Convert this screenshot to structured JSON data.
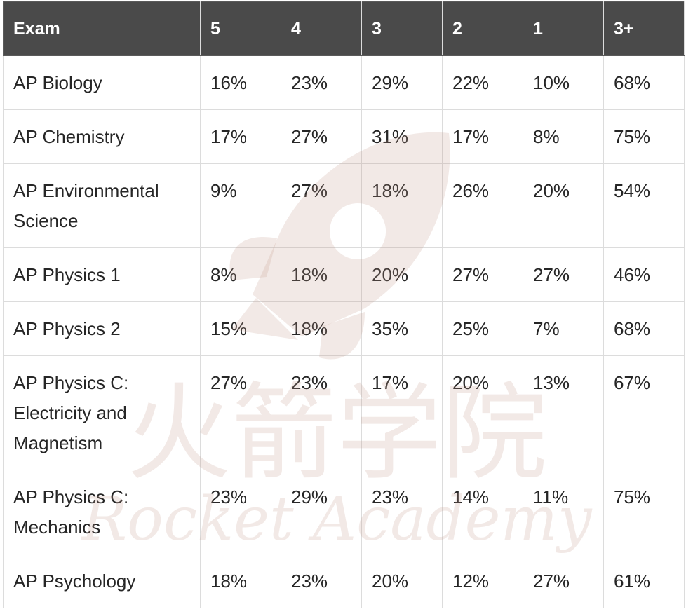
{
  "table": {
    "headers": [
      "Exam",
      "5",
      "4",
      "3",
      "2",
      "1",
      "3+"
    ],
    "rows": [
      {
        "exam": "AP Biology",
        "s5": "16%",
        "s4": "23%",
        "s3": "29%",
        "s2": "22%",
        "s1": "10%",
        "s3plus": "68%"
      },
      {
        "exam": "AP Chemistry",
        "s5": "17%",
        "s4": "27%",
        "s3": "31%",
        "s2": "17%",
        "s1": "8%",
        "s3plus": "75%"
      },
      {
        "exam": "AP Environmental Science",
        "s5": "9%",
        "s4": "27%",
        "s3": "18%",
        "s2": "26%",
        "s1": "20%",
        "s3plus": "54%"
      },
      {
        "exam": "AP Physics 1",
        "s5": "8%",
        "s4": "18%",
        "s3": "20%",
        "s2": "27%",
        "s1": "27%",
        "s3plus": "46%"
      },
      {
        "exam": "AP Physics 2",
        "s5": "15%",
        "s4": "18%",
        "s3": "35%",
        "s2": "25%",
        "s1": "7%",
        "s3plus": "68%"
      },
      {
        "exam": "AP Physics C: Electricity and Magnetism",
        "s5": "27%",
        "s4": "23%",
        "s3": "17%",
        "s2": "20%",
        "s1": "13%",
        "s3plus": "67%"
      },
      {
        "exam": "AP Physics C: Mechanics",
        "s5": "23%",
        "s4": "29%",
        "s3": "23%",
        "s2": "14%",
        "s1": "11%",
        "s3plus": "75%"
      },
      {
        "exam": "AP Psychology",
        "s5": "18%",
        "s4": "23%",
        "s3": "20%",
        "s2": "12%",
        "s1": "27%",
        "s3plus": "61%"
      }
    ]
  },
  "watermark": {
    "chinese": "火箭学院",
    "english": "Rocket Academy",
    "icon": "rocket-icon",
    "color": "#c49a8c"
  }
}
